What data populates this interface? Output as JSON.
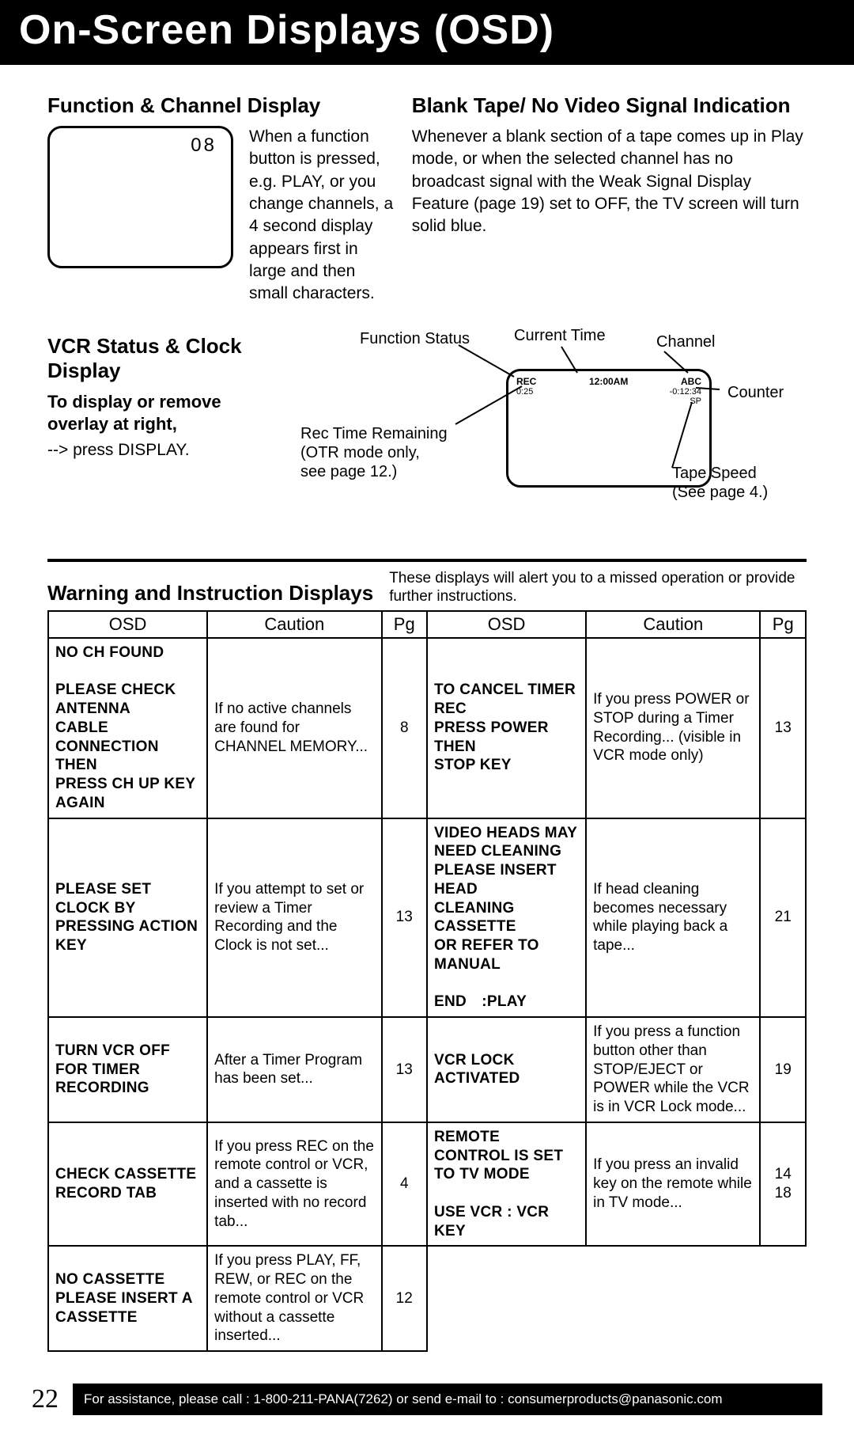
{
  "title": "On-Screen Displays (OSD)",
  "section1": {
    "heading": "Function & Channel Display",
    "screen_value": "08",
    "body": "When a function button is pressed, e.g. PLAY, or you change channels, a 4 second display appears first in large and then small characters."
  },
  "section2": {
    "heading": "Blank Tape/ No Video Signal Indication",
    "body": "Whenever a blank section of a tape comes up in Play mode, or when the selected channel has no broadcast signal with the Weak Signal Display Feature (page 19) set to OFF, the TV screen will turn solid blue."
  },
  "section3": {
    "heading": "VCR Status & Clock Display",
    "sub": "To display or remove overlay at right,",
    "body": "--> press DISPLAY."
  },
  "diagram": {
    "labels": {
      "function_status": "Function Status",
      "current_time": "Current Time",
      "channel": "Channel",
      "counter": "Counter",
      "tape_speed": "Tape Speed\n(See page 4.)",
      "rec_time": "Rec Time Remaining\n(OTR mode only,\nsee page 12.)"
    },
    "screen": {
      "rec": "REC",
      "rec_time": "0:25",
      "clock": "12:00AM",
      "ch": "ABC",
      "counter": "-0:12:34",
      "speed": "SP"
    }
  },
  "warnings": {
    "heading": "Warning and Instruction Displays",
    "note": "These displays will alert you to a missed operation or provide further instructions.",
    "columns": [
      "OSD",
      "Caution",
      "Pg",
      "OSD",
      "Caution",
      "Pg"
    ],
    "rows": [
      {
        "osd1": "NO CH FOUND\n\nPLEASE CHECK ANTENNA\nCABLE CONNECTION THEN\nPRESS CH UP KEY AGAIN",
        "caution1": "If no active channels are found for CHANNEL MEMORY...",
        "pg1": "8",
        "osd2": "TO CANCEL TIMER REC\nPRESS POWER THEN\nSTOP KEY",
        "caution2": "If you press POWER or STOP during a Timer Recording... (visible in VCR mode only)",
        "pg2": "13"
      },
      {
        "osd1": "PLEASE SET CLOCK BY\nPRESSING ACTION KEY",
        "caution1": "If you attempt to set or review a Timer Recording and the Clock is not set...",
        "pg1": "13",
        "osd2": "VIDEO HEADS MAY\nNEED CLEANING\nPLEASE INSERT HEAD\nCLEANING CASSETTE\nOR REFER TO MANUAL\n\nEND :PLAY",
        "caution2": "If head cleaning becomes necessary while playing back a tape...",
        "pg2": "21"
      },
      {
        "osd1": "TURN VCR OFF\nFOR TIMER RECORDING",
        "caution1": "After a Timer Program has been set...",
        "pg1": "13",
        "osd2": "VCR LOCK ACTIVATED",
        "caution2": "If you press a function button other than STOP/EJECT or POWER while the VCR is in VCR Lock mode...",
        "pg2": "19"
      },
      {
        "osd1": "CHECK CASSETTE\nRECORD TAB",
        "caution1": "If you press REC on the remote control or VCR, and a cassette is inserted with no record tab...",
        "pg1": "4",
        "osd2": "REMOTE CONTROL IS SET\nTO TV MODE\n\nUSE VCR : VCR KEY",
        "caution2": "If you press an invalid key on the remote while in TV mode...",
        "pg2": "14\n18"
      },
      {
        "osd1": "NO CASSETTE\nPLEASE INSERT A CASSETTE",
        "caution1": "If you press PLAY, FF, REW, or REC on the remote control or VCR without a cassette inserted...",
        "pg1": "12",
        "osd2": "",
        "caution2": "",
        "pg2": ""
      }
    ]
  },
  "footer": {
    "page": "22",
    "bar": "For assistance, please call : 1-800-211-PANA(7262) or send e-mail to : consumerproducts@panasonic.com"
  }
}
